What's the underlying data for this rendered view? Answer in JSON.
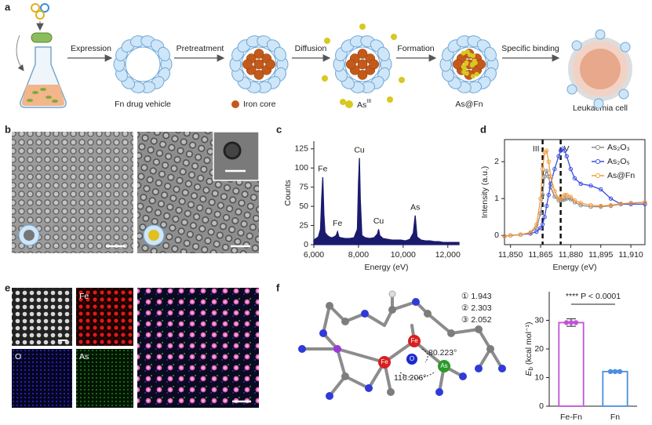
{
  "panel_labels": [
    "a",
    "b",
    "c",
    "d",
    "e",
    "f"
  ],
  "schematic": {
    "steps": [
      "Expression",
      "Pretreatment",
      "Diffusion",
      "Formation",
      "Specific binding"
    ],
    "captions": {
      "vehicle": "Fn drug vehicle",
      "core": "Iron core",
      "arsenic": "As",
      "arsenic_sup": "III",
      "product": "As@Fn",
      "cell": "Leukaemia cell"
    }
  },
  "maps": {
    "channels": [
      "Fe",
      "O",
      "As"
    ]
  },
  "structure": {
    "bonds": [
      "① 1.943",
      "② 2.303",
      "③ 2.052"
    ],
    "angles": [
      "80.223°",
      "116.206°"
    ],
    "atoms": [
      "Fe",
      "Fe",
      "O",
      "As"
    ]
  },
  "chart_data": [
    {
      "type": "line",
      "fill": true,
      "xlabel": "Energy (eV)",
      "ylabel": "Counts",
      "x": [
        6000,
        6100,
        6200,
        6300,
        6350,
        6400,
        6450,
        6500,
        6600,
        6700,
        6800,
        6900,
        7000,
        7060,
        7120,
        7200,
        7400,
        7600,
        7800,
        7950,
        8000,
        8040,
        8080,
        8150,
        8300,
        8500,
        8700,
        8850,
        8900,
        8950,
        9100,
        9300,
        9500,
        9700,
        9900,
        10100,
        10300,
        10450,
        10540,
        10620,
        10800,
        11000,
        11200,
        11400,
        11600,
        11800,
        12000,
        12200,
        12500
      ],
      "series": [
        {
          "color": "#1a1a6e",
          "values": [
            6,
            8,
            10,
            20,
            60,
            88,
            40,
            16,
            12,
            10,
            9,
            10,
            12,
            17,
            10,
            9,
            8,
            8,
            9,
            20,
            80,
            113,
            60,
            12,
            9,
            8,
            9,
            14,
            20,
            12,
            8,
            7,
            6,
            6,
            6,
            5,
            7,
            15,
            38,
            10,
            6,
            5,
            5,
            4,
            4,
            3,
            3,
            3,
            3
          ]
        }
      ],
      "peak_labels": [
        "Fe",
        "Fe",
        "Cu",
        "Cu",
        "As"
      ],
      "xlim": [
        6000,
        12500
      ],
      "ylim": [
        0,
        135
      ],
      "xticks": [
        {
          "value": 6000,
          "label": "6,000"
        },
        {
          "value": 8000,
          "label": "8,000"
        },
        {
          "value": 10000,
          "label": "10,000"
        },
        {
          "value": 12000,
          "label": "12,000"
        }
      ],
      "yticks": [
        0,
        25,
        50,
        75,
        100,
        125
      ]
    },
    {
      "type": "line",
      "xlabel": "Energy (eV)",
      "ylabel": "Intensity (a.u.)",
      "legend": "upper right",
      "x": [
        11847,
        11850,
        11855,
        11860,
        11863,
        11865,
        11866,
        11867,
        11868,
        11869,
        11870,
        11872,
        11874,
        11875,
        11876,
        11877,
        11878,
        11880,
        11882,
        11885,
        11890,
        11895,
        11900,
        11905,
        11910,
        11917
      ],
      "series": [
        {
          "name": "As₂O₃",
          "color": "#8a8a8a",
          "values": [
            -0.02,
            0,
            0.02,
            0.08,
            0.2,
            0.6,
            1.1,
            1.6,
            1.75,
            1.6,
            1.3,
            1.05,
            0.95,
            0.95,
            0.96,
            0.98,
            1.0,
            0.98,
            0.9,
            0.82,
            0.78,
            0.78,
            0.8,
            0.85,
            0.88,
            0.9
          ]
        },
        {
          "name": "As₂O₅",
          "color": "#3b4fe0",
          "values": [
            -0.02,
            0,
            0.02,
            0.05,
            0.1,
            0.2,
            0.3,
            0.5,
            0.8,
            1.1,
            1.4,
            1.8,
            2.15,
            2.3,
            2.35,
            2.3,
            2.15,
            1.8,
            1.55,
            1.4,
            1.35,
            1.25,
            1.0,
            0.85,
            0.85,
            0.85
          ]
        },
        {
          "name": "As@Fn",
          "color": "#f39a3c",
          "values": [
            -0.02,
            0,
            0.02,
            0.08,
            0.3,
            1.0,
            1.8,
            2.25,
            2.3,
            2.0,
            1.6,
            1.2,
            1.0,
            1.0,
            1.05,
            1.1,
            1.1,
            1.05,
            0.95,
            0.88,
            0.82,
            0.8,
            0.82,
            0.86,
            0.88,
            0.9
          ]
        }
      ],
      "markers": [
        {
          "label": "III",
          "x": 11866
        },
        {
          "label": "V",
          "x": 11875
        }
      ],
      "xlim": [
        11847,
        11917
      ],
      "ylim": [
        -0.25,
        2.6
      ],
      "xticks": [
        {
          "value": 11850,
          "label": "11,850"
        },
        {
          "value": 11865,
          "label": "11,865"
        },
        {
          "value": 11880,
          "label": "11,880"
        },
        {
          "value": 11895,
          "label": "11,895"
        },
        {
          "value": 11910,
          "label": "11,910"
        }
      ],
      "yticks": [
        0,
        1,
        2
      ]
    },
    {
      "type": "bar",
      "ylabel": {
        "symbol": "E",
        "sub": "b",
        "unit": " (kcal mol⁻¹)"
      },
      "categories": [
        "Fe-Fn",
        "Fn"
      ],
      "values": [
        29.2,
        12.1
      ],
      "errors": [
        1.3,
        0.3
      ],
      "colors": [
        "#c054d6",
        "#4a90e2"
      ],
      "annotation": "**** P < 0.0001",
      "ylim": [
        0,
        40
      ],
      "yticks": [
        0,
        10,
        20,
        30
      ]
    }
  ]
}
